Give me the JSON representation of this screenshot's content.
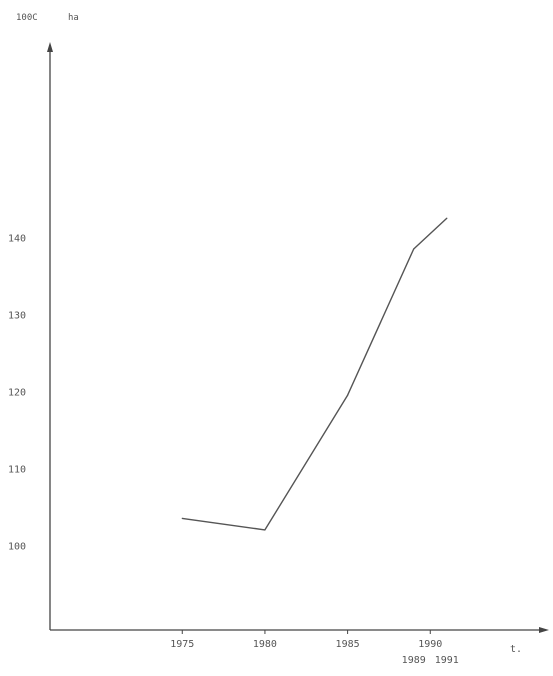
{
  "chart_data": {
    "type": "line",
    "title": "",
    "ylabel_prefix": "100C",
    "ylabel": "ha",
    "xlabel": "t.",
    "x_ticks": [
      1975,
      1980,
      1985,
      1990
    ],
    "x_tick_labels": [
      "1975",
      "1980",
      "1985",
      "1990"
    ],
    "x_secondary_ticks": [
      1989,
      1991
    ],
    "x_secondary_labels": [
      "1989",
      "1991"
    ],
    "y_ticks": [
      100,
      110,
      120,
      130,
      140
    ],
    "y_tick_labels": [
      "100",
      "110",
      "120",
      "130",
      "140"
    ],
    "xlim": [
      1967,
      1997
    ],
    "ylim": [
      89,
      165
    ],
    "series": [
      {
        "x": [
          1975,
          1980,
          1985,
          1989,
          1991
        ],
        "y": [
          103.5,
          102.0,
          119.5,
          138.5,
          142.5
        ]
      }
    ],
    "grid": false,
    "line_color": "#555555",
    "axis_color": "#444444"
  }
}
